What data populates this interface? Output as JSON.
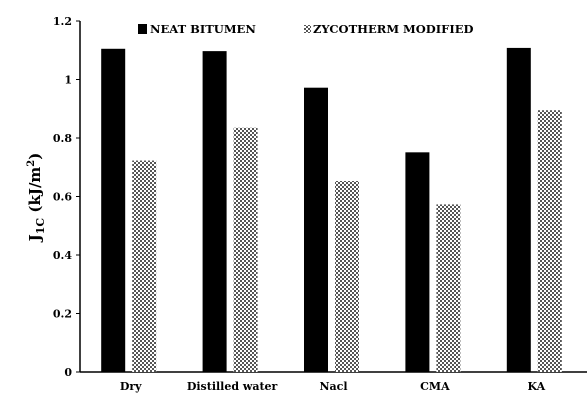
{
  "chart_data": {
    "type": "bar",
    "title": "",
    "xlabel": "",
    "ylabel": {
      "main": "J",
      "sub": "1C",
      "unit_prefix": " (kJ/m",
      "unit_sup": "2",
      "unit_suffix": ")"
    },
    "categories": [
      "Dry",
      "Distilled water",
      "Nacl",
      "CMA",
      "KA"
    ],
    "series": [
      {
        "name": "NEAT BITUMEN",
        "values": [
          1.105,
          1.097,
          0.972,
          0.751,
          1.108
        ],
        "color": "#000000",
        "pattern": "solid"
      },
      {
        "name": "ZYCOTHERM MODIFIED",
        "values": [
          0.723,
          0.835,
          0.653,
          0.573,
          0.895
        ],
        "color": "#7a7a7a",
        "pattern": "checker"
      }
    ],
    "ylim": [
      0,
      1.2
    ],
    "yticks": [
      "0",
      "0.2",
      "0.4",
      "0.6",
      "0.8",
      "1",
      "1.2"
    ],
    "legend_position": "top",
    "grid": false
  }
}
